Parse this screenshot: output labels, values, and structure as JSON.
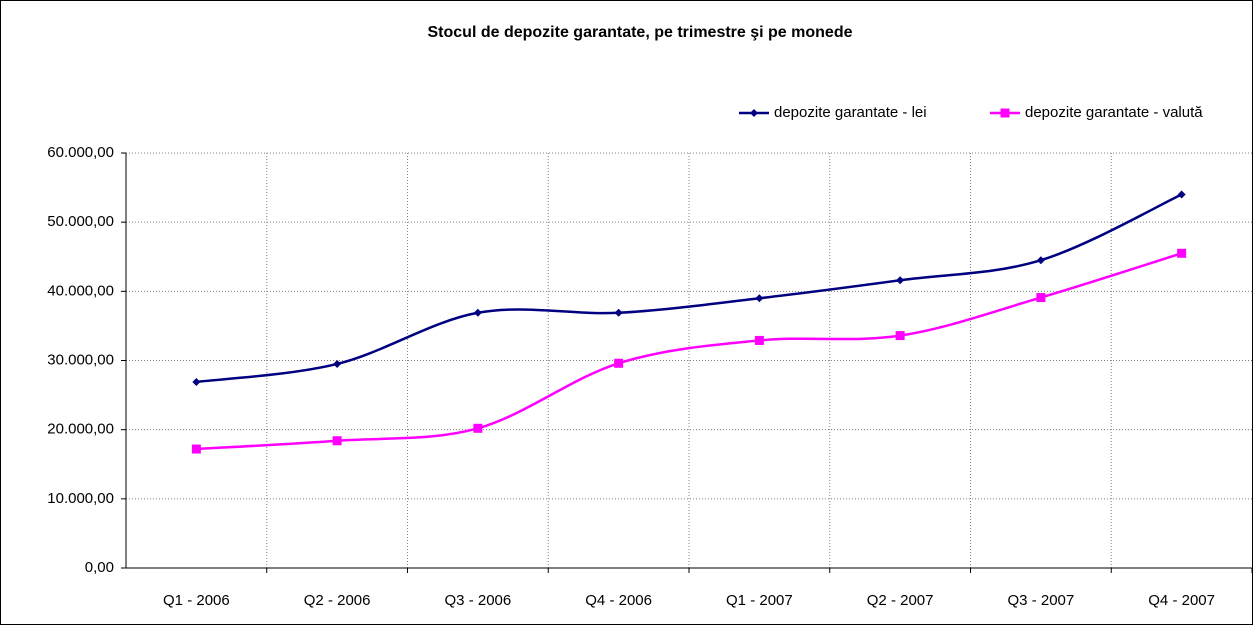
{
  "chart_data": {
    "type": "line",
    "title": "Stocul de depozite garantate, pe trimestre şi pe monede",
    "categories": [
      "Q1 - 2006",
      "Q2 - 2006",
      "Q3 - 2006",
      "Q4 - 2006",
      "Q1 - 2007",
      "Q2 - 2007",
      "Q3 - 2007",
      "Q4 - 2007"
    ],
    "series": [
      {
        "name": "depozite garantate - lei",
        "color": "#000080",
        "marker": "diamond",
        "values": [
          26900,
          29500,
          36900,
          36900,
          39000,
          41600,
          44500,
          54000
        ]
      },
      {
        "name": "depozite garantate - valută",
        "color": "#ff00ff",
        "marker": "square",
        "values": [
          17200,
          18400,
          20200,
          29600,
          32900,
          33600,
          39100,
          45500
        ]
      }
    ],
    "ylim": [
      0,
      60000
    ],
    "yticks": [
      {
        "value": 0,
        "label": "0,00"
      },
      {
        "value": 10000,
        "label": "10.000,00"
      },
      {
        "value": 20000,
        "label": "20.000,00"
      },
      {
        "value": 30000,
        "label": "30.000,00"
      },
      {
        "value": 40000,
        "label": "40.000,00"
      },
      {
        "value": 50000,
        "label": "50.000,00"
      },
      {
        "value": 60000,
        "label": "60.000,00"
      }
    ],
    "grid": true,
    "smooth": true,
    "legend": "top-right"
  }
}
